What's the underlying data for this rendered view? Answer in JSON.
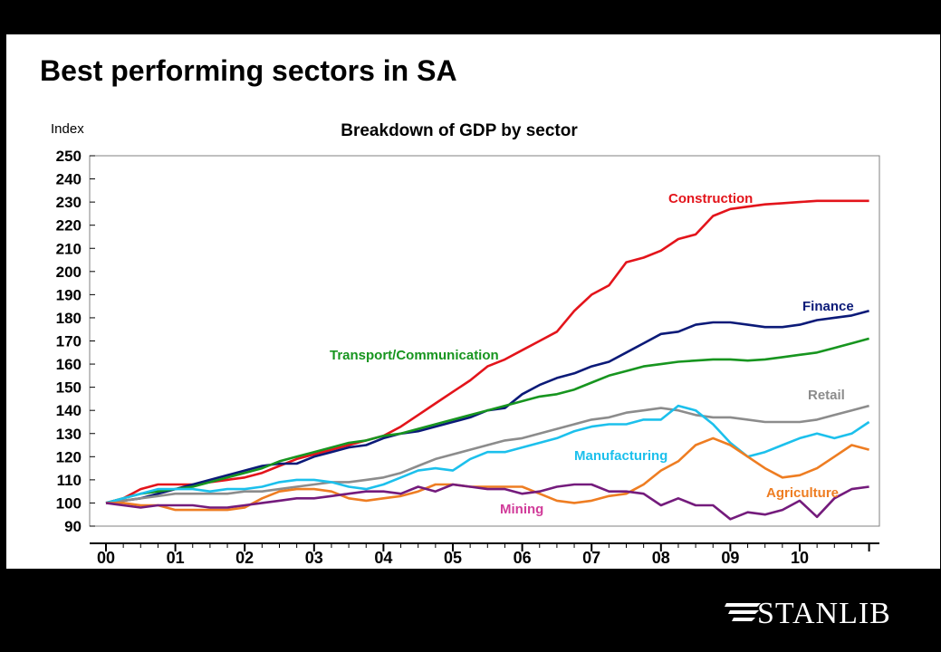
{
  "slide": {
    "title": "Best performing sectors in SA",
    "brand": "STANLIB"
  },
  "chart_data": {
    "type": "line",
    "title": "Breakdown of GDP by sector",
    "ylabel": "Index",
    "xlabel": "",
    "ylim": [
      90,
      250
    ],
    "yticks": [
      90,
      100,
      110,
      120,
      130,
      140,
      150,
      160,
      170,
      180,
      190,
      200,
      210,
      220,
      230,
      240,
      250
    ],
    "xlim": [
      0,
      11.1
    ],
    "xticks": [
      0,
      1,
      2,
      3,
      4,
      5,
      6,
      7,
      8,
      9,
      10
    ],
    "xticklabels": [
      "00",
      "01",
      "02",
      "03",
      "04",
      "05",
      "06",
      "07",
      "08",
      "09",
      "10"
    ],
    "grid": false,
    "legend": "inline labels",
    "series": [
      {
        "name": "Construction",
        "color": "#e3141b",
        "x": [
          0,
          0.25,
          0.5,
          0.75,
          1,
          1.25,
          1.5,
          1.75,
          2,
          2.25,
          2.5,
          2.75,
          3,
          3.25,
          3.5,
          3.75,
          4,
          4.25,
          4.5,
          4.75,
          5,
          5.25,
          5.5,
          5.75,
          6,
          6.25,
          6.5,
          6.75,
          7,
          7.25,
          7.5,
          7.75,
          8,
          8.25,
          8.5,
          8.75,
          9,
          9.25,
          9.5,
          9.75,
          10,
          10.25,
          10.5,
          10.75,
          11
        ],
        "y": [
          100,
          102,
          106,
          108,
          108,
          108,
          109,
          110,
          111,
          113,
          116,
          119,
          121,
          123,
          125,
          127,
          129,
          133,
          138,
          143,
          148,
          153,
          159,
          162,
          166,
          170,
          174,
          183,
          190,
          194,
          204,
          206,
          209,
          214,
          216,
          224,
          227,
          228,
          229,
          229.5,
          230,
          230.5,
          230.5,
          230.5,
          230.5
        ]
      },
      {
        "name": "Finance",
        "color": "#0b1a78",
        "x": [
          0,
          0.25,
          0.5,
          0.75,
          1,
          1.25,
          1.5,
          1.75,
          2,
          2.25,
          2.5,
          2.75,
          3,
          3.25,
          3.5,
          3.75,
          4,
          4.25,
          4.5,
          4.75,
          5,
          5.25,
          5.5,
          5.75,
          6,
          6.25,
          6.5,
          6.75,
          7,
          7.25,
          7.5,
          7.75,
          8,
          8.25,
          8.5,
          8.75,
          9,
          9.25,
          9.5,
          9.75,
          10,
          10.25,
          10.5,
          10.75,
          11
        ],
        "y": [
          100,
          101,
          102,
          104,
          106,
          108,
          110,
          112,
          114,
          116,
          117,
          117,
          120,
          122,
          124,
          125,
          128,
          130,
          131,
          133,
          135,
          137,
          140,
          141,
          147,
          151,
          154,
          156,
          159,
          161,
          165,
          169,
          173,
          174,
          177,
          178,
          178,
          177,
          176,
          176,
          177,
          179,
          180,
          181,
          183
        ]
      },
      {
        "name": "Transport/Communication",
        "color": "#17951f",
        "x": [
          0,
          0.25,
          0.5,
          0.75,
          1,
          1.25,
          1.5,
          1.75,
          2,
          2.25,
          2.5,
          2.75,
          3,
          3.25,
          3.5,
          3.75,
          4,
          4.25,
          4.5,
          4.75,
          5,
          5.25,
          5.5,
          5.75,
          6,
          6.25,
          6.5,
          6.75,
          7,
          7.25,
          7.5,
          7.75,
          8,
          8.25,
          8.5,
          8.75,
          9,
          9.25,
          9.5,
          9.75,
          10,
          10.25,
          10.5,
          10.75,
          11
        ],
        "y": [
          100,
          102,
          104,
          105,
          106,
          107,
          109,
          111,
          113,
          115,
          118,
          120,
          122,
          124,
          126,
          127,
          129,
          130,
          132,
          134,
          136,
          138,
          140,
          142,
          144,
          146,
          147,
          149,
          152,
          155,
          157,
          159,
          160,
          161,
          161.5,
          162,
          162,
          161.5,
          162,
          163,
          164,
          165,
          167,
          169,
          171
        ]
      },
      {
        "name": "Retail",
        "color": "#8c8c8c",
        "x": [
          0,
          0.25,
          0.5,
          0.75,
          1,
          1.25,
          1.5,
          1.75,
          2,
          2.25,
          2.5,
          2.75,
          3,
          3.25,
          3.5,
          3.75,
          4,
          4.25,
          4.5,
          4.75,
          5,
          5.25,
          5.5,
          5.75,
          6,
          6.25,
          6.5,
          6.75,
          7,
          7.25,
          7.5,
          7.75,
          8,
          8.25,
          8.5,
          8.75,
          9,
          9.25,
          9.5,
          9.75,
          10,
          10.25,
          10.5,
          10.75,
          11
        ],
        "y": [
          100,
          101,
          102,
          103,
          104,
          104,
          104,
          104,
          105,
          105,
          106,
          107,
          108,
          109,
          109,
          110,
          111,
          113,
          116,
          119,
          121,
          123,
          125,
          127,
          128,
          130,
          132,
          134,
          136,
          137,
          139,
          140,
          141,
          140,
          138,
          137,
          137,
          136,
          135,
          135,
          135,
          136,
          138,
          140,
          142
        ]
      },
      {
        "name": "Manufacturing",
        "color": "#1cc0ec",
        "x": [
          0,
          0.25,
          0.5,
          0.75,
          1,
          1.25,
          1.5,
          1.75,
          2,
          2.25,
          2.5,
          2.75,
          3,
          3.25,
          3.5,
          3.75,
          4,
          4.25,
          4.5,
          4.75,
          5,
          5.25,
          5.5,
          5.75,
          6,
          6.25,
          6.5,
          6.75,
          7,
          7.25,
          7.5,
          7.75,
          8,
          8.25,
          8.5,
          8.75,
          9,
          9.25,
          9.5,
          9.75,
          10,
          10.25,
          10.5,
          10.75,
          11
        ],
        "y": [
          100,
          102,
          104,
          106,
          106,
          106,
          105,
          106,
          106,
          107,
          109,
          110,
          110,
          109,
          107,
          106,
          108,
          111,
          114,
          115,
          114,
          119,
          122,
          122,
          124,
          126,
          128,
          131,
          133,
          134,
          134,
          136,
          136,
          142,
          140,
          134,
          126,
          120,
          122,
          125,
          128,
          130,
          128,
          130,
          135
        ]
      },
      {
        "name": "Agriculture",
        "color": "#ee7d22",
        "x": [
          0,
          0.25,
          0.5,
          0.75,
          1,
          1.25,
          1.5,
          1.75,
          2,
          2.25,
          2.5,
          2.75,
          3,
          3.25,
          3.5,
          3.75,
          4,
          4.25,
          4.5,
          4.75,
          5,
          5.25,
          5.5,
          5.75,
          6,
          6.25,
          6.5,
          6.75,
          7,
          7.25,
          7.5,
          7.75,
          8,
          8.25,
          8.5,
          8.75,
          9,
          9.25,
          9.5,
          9.75,
          10,
          10.25,
          10.5,
          10.75,
          11
        ],
        "y": [
          100,
          100,
          99,
          99,
          97,
          97,
          97,
          97,
          98,
          102,
          105,
          106,
          106,
          105,
          102,
          101,
          102,
          103,
          105,
          108,
          108,
          107,
          107,
          107,
          107,
          104,
          101,
          100,
          101,
          103,
          104,
          108,
          114,
          118,
          125,
          128,
          125,
          120,
          115,
          111,
          112,
          115,
          120,
          125,
          123
        ]
      },
      {
        "name": "Mining",
        "color": "#741b7c",
        "x": [
          0,
          0.25,
          0.5,
          0.75,
          1,
          1.25,
          1.5,
          1.75,
          2,
          2.25,
          2.5,
          2.75,
          3,
          3.25,
          3.5,
          3.75,
          4,
          4.25,
          4.5,
          4.75,
          5,
          5.25,
          5.5,
          5.75,
          6,
          6.25,
          6.5,
          6.75,
          7,
          7.25,
          7.5,
          7.75,
          8,
          8.25,
          8.5,
          8.75,
          9,
          9.25,
          9.5,
          9.75,
          10,
          10.25,
          10.5,
          10.75,
          11
        ],
        "y": [
          100,
          99,
          98,
          99,
          99,
          99,
          98,
          98,
          99,
          100,
          101,
          102,
          102,
          103,
          104,
          105,
          105,
          104,
          107,
          105,
          108,
          107,
          106,
          106,
          104,
          105,
          107,
          108,
          108,
          105,
          105,
          104,
          99,
          102,
          99,
          99,
          93,
          96,
          95,
          97,
          101,
          94,
          102,
          106,
          107
        ]
      }
    ]
  }
}
